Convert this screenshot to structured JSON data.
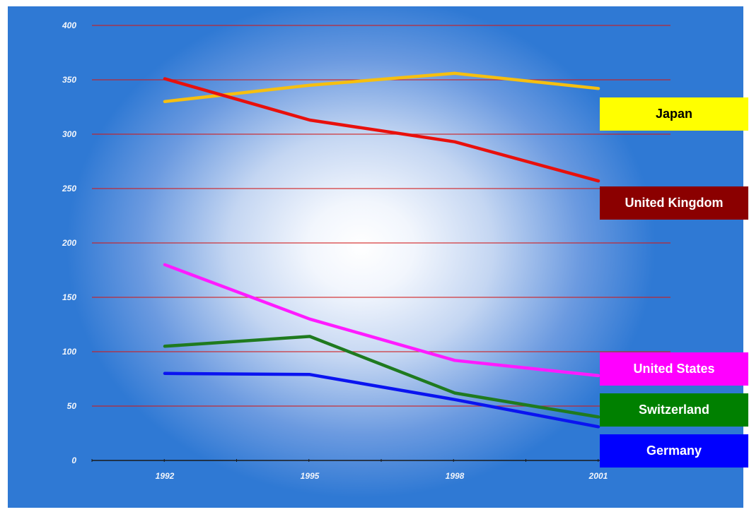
{
  "chart_data": {
    "type": "line",
    "categories": [
      "1992",
      "1995",
      "1998",
      "2001"
    ],
    "ylim": [
      0,
      400
    ],
    "yticks": [
      "0",
      "50",
      "100",
      "150",
      "200",
      "250",
      "300",
      "350",
      "400"
    ],
    "grid": true,
    "legend_position": "right",
    "series": [
      {
        "name": "Japan",
        "values": [
          330,
          345,
          356,
          342
        ],
        "color": "#f6bf10",
        "legend_bg": "#ffff00",
        "legend_fg": "#000000"
      },
      {
        "name": "United Kingdom",
        "values": [
          351,
          313,
          293,
          257
        ],
        "color": "#e8100c",
        "legend_bg": "#8b0000",
        "legend_fg": "#ffffff"
      },
      {
        "name": "United States",
        "values": [
          180,
          130,
          92,
          78
        ],
        "color": "#ff1bff",
        "legend_bg": "#ff00ff",
        "legend_fg": "#ffffff"
      },
      {
        "name": "Switzerland",
        "values": [
          105,
          114,
          62,
          40
        ],
        "color": "#1f7a1f",
        "legend_bg": "#008000",
        "legend_fg": "#ffffff"
      },
      {
        "name": "Germany",
        "values": [
          80,
          79,
          56,
          31
        ],
        "color": "#0a14f0",
        "legend_bg": "#0000ff",
        "legend_fg": "#ffffff"
      }
    ]
  }
}
